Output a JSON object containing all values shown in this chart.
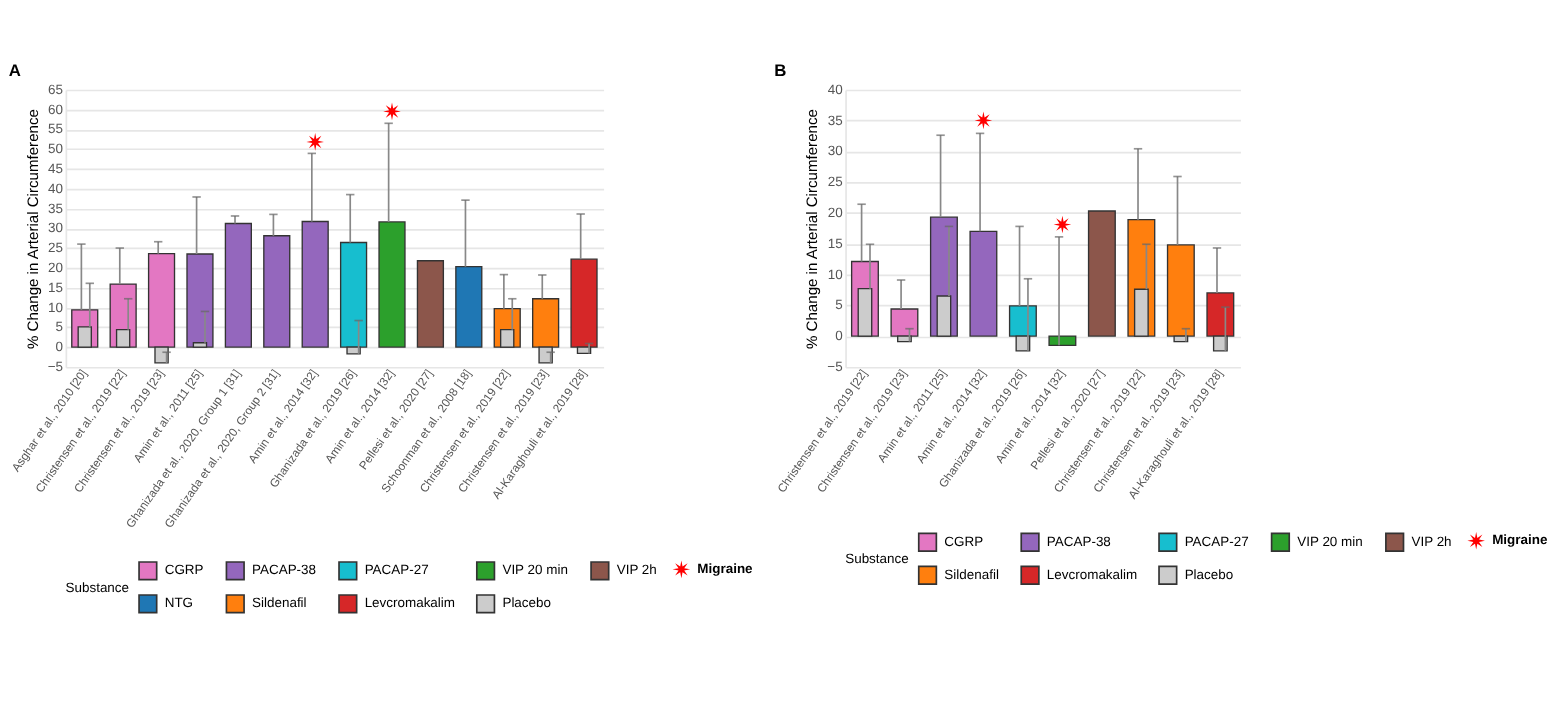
{
  "chart_data": [
    {
      "type": "bar",
      "title": "A",
      "ylabel": "% Change in Arterial Circumference",
      "legend_title": "Substance",
      "legend": "bottom",
      "grid": "y",
      "categories": [
        "Asghar et al., 2010 [20]",
        "Christensen et al., 2019 [22]",
        "Christensen et al., 2019 [23]",
        "Amin et al., 2011 [25]",
        "Ghanizada et al., 2020, Group 1 [31]",
        "Ghanizada et al., 2020, Group 2 [31]",
        "Amin et al., 2014 [32]",
        "Ghanizada et al., 2019 [26]",
        "Amin et al., 2014 [32]",
        "Pellesi et al., 2020 [27]",
        "Schoonman et al., 2008 [18]",
        "Christensen et al., 2019 [22]",
        "Christensen et al., 2019 [23]",
        "Al-Karaghouli et al., 2019 [28]"
      ],
      "ylim": [
        -5,
        65
      ],
      "yticks": [
        -5,
        0,
        5,
        10,
        15,
        20,
        25,
        30,
        35,
        40,
        45,
        50,
        55,
        60,
        65
      ],
      "series": [
        {
          "name": "CGRP",
          "color": "#e377c2",
          "values": [
            9.4,
            15.9,
            23.6,
            null,
            null,
            null,
            null,
            null,
            null,
            null,
            null,
            null,
            null,
            null
          ],
          "errors": [
            [
              9.4,
              26
            ],
            [
              15.9,
              25
            ],
            [
              23.6,
              26.6
            ],
            null,
            null,
            null,
            null,
            null,
            null,
            null,
            null,
            null,
            null,
            null
          ]
        },
        {
          "name": "PACAP-38",
          "color": "#9467bd",
          "values": [
            null,
            null,
            null,
            23.5,
            31.2,
            28.1,
            31.7,
            null,
            null,
            null,
            null,
            null,
            null,
            null
          ],
          "errors": [
            null,
            null,
            null,
            [
              23.5,
              37.9
            ],
            [
              31.2,
              33.1
            ],
            [
              28.1,
              33.5
            ],
            [
              31.7,
              48.9
            ],
            null,
            null,
            null,
            null,
            null,
            null,
            null
          ]
        },
        {
          "name": "PACAP-27",
          "color": "#17becf",
          "values": [
            null,
            null,
            null,
            null,
            null,
            null,
            null,
            26.4,
            null,
            null,
            null,
            null,
            null,
            null
          ],
          "errors": [
            null,
            null,
            null,
            null,
            null,
            null,
            null,
            [
              26.4,
              38.5
            ],
            null,
            null,
            null,
            null,
            null,
            null
          ]
        },
        {
          "name": "VIP 20 min",
          "color": "#2ca02c",
          "values": [
            null,
            null,
            null,
            null,
            null,
            null,
            null,
            null,
            31.6,
            null,
            null,
            null,
            null,
            null
          ],
          "errors": [
            null,
            null,
            null,
            null,
            null,
            null,
            null,
            null,
            [
              31.6,
              56.5
            ],
            null,
            null,
            null,
            null,
            null
          ]
        },
        {
          "name": "VIP 2h",
          "color": "#8c564b",
          "values": [
            null,
            null,
            null,
            null,
            null,
            null,
            null,
            null,
            null,
            21.8,
            null,
            null,
            null,
            null
          ]
        },
        {
          "name": "NTG",
          "color": "#1f77b4",
          "values": [
            null,
            null,
            null,
            null,
            null,
            null,
            null,
            null,
            null,
            null,
            20.3,
            null,
            null,
            null
          ],
          "errors": [
            null,
            null,
            null,
            null,
            null,
            null,
            null,
            null,
            null,
            null,
            [
              20.3,
              37.1
            ],
            null,
            null,
            null
          ]
        },
        {
          "name": "Sildenafil",
          "color": "#ff7f0e",
          "values": [
            null,
            null,
            null,
            null,
            null,
            null,
            null,
            null,
            null,
            null,
            null,
            9.7,
            12.2,
            null
          ],
          "errors": [
            null,
            null,
            null,
            null,
            null,
            null,
            null,
            null,
            null,
            null,
            null,
            [
              9.7,
              18.3
            ],
            [
              12.2,
              18.2
            ],
            null
          ]
        },
        {
          "name": "Levcromakalim",
          "color": "#d62728",
          "values": [
            null,
            null,
            null,
            null,
            null,
            null,
            null,
            null,
            null,
            null,
            null,
            null,
            null,
            22.2
          ],
          "errors": [
            null,
            null,
            null,
            null,
            null,
            null,
            null,
            null,
            null,
            null,
            null,
            null,
            null,
            [
              22.2,
              33.6
            ]
          ]
        },
        {
          "name": "Placebo",
          "color": "#cccccc",
          "values": [
            5.1,
            4.4,
            -4.0,
            1.1,
            null,
            null,
            null,
            -1.7,
            null,
            null,
            null,
            4.4,
            -4.0,
            -1.6
          ],
          "errors": [
            [
              5.1,
              16.1
            ],
            [
              4.4,
              12.2
            ],
            [
              -4.0,
              -1.3
            ],
            [
              1.1,
              9.0
            ],
            null,
            null,
            null,
            [
              -1.7,
              6.7
            ],
            null,
            null,
            null,
            [
              4.4,
              12.2
            ],
            [
              -4.0,
              -1.3
            ],
            [
              -1.6,
              0.9
            ]
          ]
        },
        {
          "name": "Migraine",
          "type": "scatter",
          "marker": "star",
          "color": "#ff0000",
          "values": [
            null,
            null,
            null,
            null,
            null,
            null,
            51.8,
            null,
            59.5,
            null,
            null,
            null,
            null,
            null
          ]
        }
      ]
    },
    {
      "type": "bar",
      "title": "B",
      "ylabel": "% Change in Arterial Circumference",
      "legend_title": "Substance",
      "legend": "bottom",
      "grid": "y",
      "categories": [
        "Christensen et al., 2019 [22]",
        "Christensen et al., 2019 [23]",
        "Amin et al., 2011 [25]",
        "Amin et al., 2014 [32]",
        "Ghanizada et al., 2019 [26]",
        "Amin et al., 2014 [32]",
        "Pellesi et al., 2020 [27]",
        "Christensen et al., 2019 [22]",
        "Christensen et al., 2019 [23]",
        "Al-Karaghouli et al., 2019 [28]"
      ],
      "ylim": [
        -5,
        40
      ],
      "yticks": [
        -5,
        0,
        5,
        10,
        15,
        20,
        25,
        30,
        35,
        40
      ],
      "series": [
        {
          "name": "CGRP",
          "color": "#e377c2",
          "values": [
            12.1,
            4.4,
            null,
            null,
            null,
            null,
            null,
            null,
            null,
            null
          ],
          "errors": [
            [
              12.1,
              21.4
            ],
            [
              4.4,
              9.1
            ],
            null,
            null,
            null,
            null,
            null,
            null,
            null,
            null
          ]
        },
        {
          "name": "PACAP-38",
          "color": "#9467bd",
          "values": [
            null,
            null,
            19.3,
            17.0,
            null,
            null,
            null,
            null,
            null,
            null
          ],
          "errors": [
            null,
            null,
            [
              19.3,
              32.6
            ],
            [
              17.0,
              32.9
            ],
            null,
            null,
            null,
            null,
            null,
            null
          ]
        },
        {
          "name": "PACAP-27",
          "color": "#17becf",
          "values": [
            null,
            null,
            null,
            null,
            4.9,
            null,
            null,
            null,
            null,
            null
          ],
          "errors": [
            null,
            null,
            null,
            null,
            [
              4.9,
              17.8
            ],
            null,
            null,
            null,
            null,
            null
          ]
        },
        {
          "name": "VIP 20 min",
          "color": "#2ca02c",
          "values": [
            null,
            null,
            null,
            null,
            null,
            -1.5,
            null,
            null,
            null,
            null
          ],
          "errors": [
            null,
            null,
            null,
            null,
            null,
            [
              -1.5,
              16.1
            ],
            null,
            null,
            null,
            null
          ]
        },
        {
          "name": "VIP 2h",
          "color": "#8c564b",
          "values": [
            null,
            null,
            null,
            null,
            null,
            null,
            20.3,
            null,
            null,
            null
          ]
        },
        {
          "name": "Sildenafil",
          "color": "#ff7f0e",
          "values": [
            null,
            null,
            null,
            null,
            null,
            null,
            null,
            18.9,
            14.8,
            null
          ],
          "errors": [
            null,
            null,
            null,
            null,
            null,
            null,
            null,
            [
              18.9,
              30.4
            ],
            [
              14.8,
              25.9
            ],
            null
          ]
        },
        {
          "name": "Levcromakalim",
          "color": "#d62728",
          "values": [
            null,
            null,
            null,
            null,
            null,
            null,
            null,
            null,
            null,
            7.0
          ],
          "errors": [
            null,
            null,
            null,
            null,
            null,
            null,
            null,
            null,
            null,
            [
              7.0,
              14.3
            ]
          ]
        },
        {
          "name": "Placebo",
          "color": "#cccccc",
          "values": [
            7.7,
            -0.9,
            6.5,
            null,
            -2.4,
            null,
            null,
            7.6,
            -0.9,
            -2.4
          ],
          "errors": [
            [
              7.7,
              14.9
            ],
            [
              -0.9,
              1.2
            ],
            [
              6.5,
              17.8
            ],
            null,
            [
              -2.4,
              9.3
            ],
            null,
            null,
            [
              7.6,
              14.9
            ],
            [
              -0.9,
              1.2
            ],
            [
              -2.4,
              4.7
            ]
          ]
        },
        {
          "name": "Migraine",
          "type": "scatter",
          "marker": "star",
          "color": "#ff0000",
          "values": [
            null,
            null,
            null,
            35.0,
            null,
            18.1,
            null,
            null,
            null,
            null
          ]
        }
      ]
    }
  ]
}
